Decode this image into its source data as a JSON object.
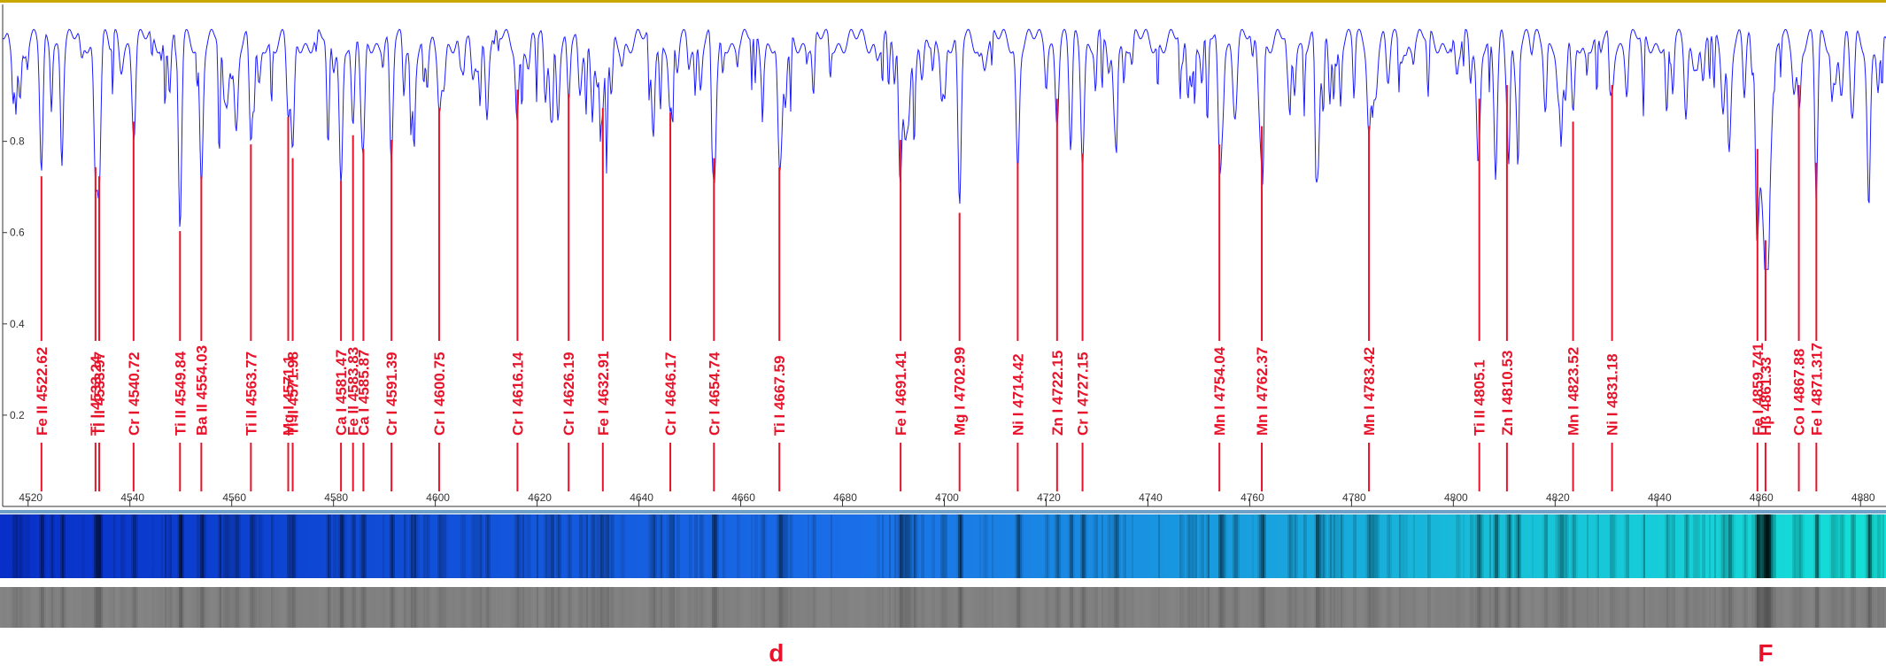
{
  "colors": {
    "spectrum_line": "#1a1aff",
    "marker_line": "#e8132a",
    "label_text": "#e8132a",
    "axis": "#333333",
    "synthetic_blue": "#0a3fd6",
    "synthetic_cyan": "#12d6d6",
    "grayscale_bg": "#3a3a3a"
  },
  "chart_data": {
    "type": "line",
    "title": "",
    "xlabel": "",
    "ylabel": "",
    "xlim": [
      4515,
      4885
    ],
    "ylim": [
      0.0,
      1.1
    ],
    "x_ticks": [
      4520,
      4540,
      4560,
      4580,
      4600,
      4620,
      4640,
      4660,
      4680,
      4700,
      4720,
      4740,
      4760,
      4780,
      4800,
      4820,
      4840,
      4860,
      4880
    ],
    "y_ticks": [
      0.2,
      0.4,
      0.6,
      0.8
    ],
    "continuum": 1.0,
    "grid": false,
    "series": [
      {
        "values_note_free": true,
        "lines": [
          {
            "label": "Fe II",
            "wavelength": "4522.62",
            "x": 4522.62,
            "depth": 0.7
          },
          {
            "label": "Ti I",
            "wavelength": "4533.24",
            "x": 4533.24,
            "depth": 0.72
          },
          {
            "label": "Ti II",
            "wavelength": "4533.97",
            "x": 4533.97,
            "depth": 0.7
          },
          {
            "label": "Cr I",
            "wavelength": "4540.72",
            "x": 4540.72,
            "depth": 0.82
          },
          {
            "label": "Ti II",
            "wavelength": "4549.84",
            "x": 4549.84,
            "depth": 0.58
          },
          {
            "label": "Ba II",
            "wavelength": "4554.03",
            "x": 4554.03,
            "depth": 0.7
          },
          {
            "label": "Ti II",
            "wavelength": "4563.77",
            "x": 4563.77,
            "depth": 0.77
          },
          {
            "label": "Mg I",
            "wavelength": "4571.1",
            "x": 4571.1,
            "depth": 0.83
          },
          {
            "label": "Ti II",
            "wavelength": "4571.98",
            "x": 4571.98,
            "depth": 0.74
          },
          {
            "label": "Ca I",
            "wavelength": "4581.47",
            "x": 4581.47,
            "depth": 0.69
          },
          {
            "label": "Fe II",
            "wavelength": "4583.83",
            "x": 4583.83,
            "depth": 0.79
          },
          {
            "label": "Ca I",
            "wavelength": "4585.87",
            "x": 4585.87,
            "depth": 0.76
          },
          {
            "label": "Cr I",
            "wavelength": "4591.39",
            "x": 4591.39,
            "depth": 0.78
          },
          {
            "label": "Cr I",
            "wavelength": "4600.75",
            "x": 4600.75,
            "depth": 0.85
          },
          {
            "label": "Cr I",
            "wavelength": "4616.14",
            "x": 4616.14,
            "depth": 0.89
          },
          {
            "label": "Cr I",
            "wavelength": "4626.19",
            "x": 4626.19,
            "depth": 0.88
          },
          {
            "label": "Fe I",
            "wavelength": "4632.91",
            "x": 4632.91,
            "depth": 0.85
          },
          {
            "label": "Cr I",
            "wavelength": "4646.17",
            "x": 4646.17,
            "depth": 0.84
          },
          {
            "label": "Cr I",
            "wavelength": "4654.74",
            "x": 4654.74,
            "depth": 0.74
          },
          {
            "label": "Ti I",
            "wavelength": "4667.59",
            "x": 4667.59,
            "depth": 0.72
          },
          {
            "label": "Fe I",
            "wavelength": "4691.41",
            "x": 4691.41,
            "depth": 0.78
          },
          {
            "label": "Mg I",
            "wavelength": "4702.99",
            "x": 4702.99,
            "depth": 0.62
          },
          {
            "label": "Ni I",
            "wavelength": "4714.42",
            "x": 4714.42,
            "depth": 0.73
          },
          {
            "label": "Zn I",
            "wavelength": "4722.15",
            "x": 4722.15,
            "depth": 0.87
          },
          {
            "label": "Cr I",
            "wavelength": "4727.15",
            "x": 4727.15,
            "depth": 0.75
          },
          {
            "label": "Mn I",
            "wavelength": "4754.04",
            "x": 4754.04,
            "depth": 0.77
          },
          {
            "label": "Mn I",
            "wavelength": "4762.37",
            "x": 4762.37,
            "depth": 0.81
          },
          {
            "label": "Mn I",
            "wavelength": "4783.42",
            "x": 4783.42,
            "depth": 0.81
          },
          {
            "label": "Ti II",
            "wavelength": "4805.1",
            "x": 4805.1,
            "depth": 0.87
          },
          {
            "label": "Zn I",
            "wavelength": "4810.53",
            "x": 4810.53,
            "depth": 0.9
          },
          {
            "label": "Mn I",
            "wavelength": "4823.52",
            "x": 4823.52,
            "depth": 0.82
          },
          {
            "label": "Ni I",
            "wavelength": "4831.18",
            "x": 4831.18,
            "depth": 0.9
          },
          {
            "label": "Fe I",
            "wavelength": "4859.741",
            "x": 4859.741,
            "depth": 0.76
          },
          {
            "label": "Hβ",
            "wavelength": "4861.33",
            "x": 4861.33,
            "depth": 0.56
          },
          {
            "label": "Co I",
            "wavelength": "4867.88",
            "x": 4867.88,
            "depth": 0.9
          },
          {
            "label": "Fe I",
            "wavelength": "4871.317",
            "x": 4871.317,
            "depth": 0.73
          }
        ]
      }
    ]
  },
  "fraunhofer": [
    {
      "text": "d",
      "x": 4667.0
    },
    {
      "text": "F",
      "x": 4861.33
    }
  ]
}
